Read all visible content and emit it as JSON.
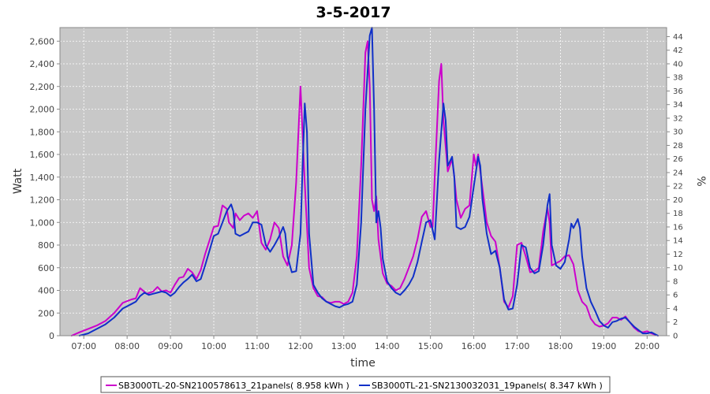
{
  "chart_data": {
    "type": "line",
    "title": "3-5-2017",
    "xlabel": "time",
    "ylabel": "Watt",
    "y2label": "%",
    "xlim": [
      6.45,
      20.45
    ],
    "ylim": [
      0,
      2720
    ],
    "y2lim": [
      0,
      45.33
    ],
    "x_ticks": [
      7,
      8,
      9,
      10,
      11,
      12,
      13,
      14,
      15,
      16,
      17,
      18,
      19,
      20
    ],
    "x_tick_labels": [
      "07:00",
      "08:00",
      "09:00",
      "10:00",
      "11:00",
      "12:00",
      "13:00",
      "14:00",
      "15:00",
      "16:00",
      "17:00",
      "18:00",
      "19:00",
      "20:00"
    ],
    "y_ticks": [
      0,
      200,
      400,
      600,
      800,
      1000,
      1200,
      1400,
      1600,
      1800,
      2000,
      2200,
      2400,
      2600
    ],
    "y_tick_labels": [
      "0",
      "200",
      "400",
      "600",
      "800",
      "1,000",
      "1,200",
      "1,400",
      "1,600",
      "1,800",
      "2,000",
      "2,200",
      "2,400",
      "2,600"
    ],
    "y2_ticks": [
      0,
      2,
      4,
      6,
      8,
      10,
      12,
      14,
      16,
      18,
      20,
      22,
      24,
      26,
      28,
      30,
      32,
      34,
      36,
      38,
      40,
      42,
      44
    ],
    "grid": true,
    "legend_position": "bottom",
    "series": [
      {
        "name": "SB3000TL-20-SN2100578613_21panels( 8.958 kWh )",
        "color": "#cc00cc",
        "points": [
          [
            6.72,
            0
          ],
          [
            6.9,
            30
          ],
          [
            7.1,
            60
          ],
          [
            7.3,
            90
          ],
          [
            7.5,
            130
          ],
          [
            7.7,
            200
          ],
          [
            7.9,
            290
          ],
          [
            8.1,
            320
          ],
          [
            8.2,
            330
          ],
          [
            8.3,
            420
          ],
          [
            8.45,
            370
          ],
          [
            8.6,
            390
          ],
          [
            8.7,
            430
          ],
          [
            8.8,
            390
          ],
          [
            8.9,
            400
          ],
          [
            9.0,
            380
          ],
          [
            9.1,
            450
          ],
          [
            9.2,
            510
          ],
          [
            9.3,
            520
          ],
          [
            9.4,
            590
          ],
          [
            9.5,
            560
          ],
          [
            9.6,
            500
          ],
          [
            9.7,
            580
          ],
          [
            9.8,
            720
          ],
          [
            9.9,
            840
          ],
          [
            10.0,
            960
          ],
          [
            10.1,
            970
          ],
          [
            10.2,
            1150
          ],
          [
            10.3,
            1120
          ],
          [
            10.35,
            1000
          ],
          [
            10.45,
            950
          ],
          [
            10.5,
            1080
          ],
          [
            10.6,
            1020
          ],
          [
            10.7,
            1060
          ],
          [
            10.8,
            1080
          ],
          [
            10.9,
            1040
          ],
          [
            11.0,
            1100
          ],
          [
            11.05,
            960
          ],
          [
            11.1,
            820
          ],
          [
            11.2,
            760
          ],
          [
            11.3,
            850
          ],
          [
            11.4,
            1000
          ],
          [
            11.5,
            950
          ],
          [
            11.6,
            700
          ],
          [
            11.7,
            620
          ],
          [
            11.8,
            800
          ],
          [
            11.9,
            1350
          ],
          [
            12.0,
            2200
          ],
          [
            12.1,
            1350
          ],
          [
            12.2,
            600
          ],
          [
            12.3,
            420
          ],
          [
            12.4,
            350
          ],
          [
            12.5,
            340
          ],
          [
            12.6,
            300
          ],
          [
            12.7,
            290
          ],
          [
            12.8,
            300
          ],
          [
            12.9,
            300
          ],
          [
            13.0,
            280
          ],
          [
            13.1,
            300
          ],
          [
            13.2,
            380
          ],
          [
            13.3,
            700
          ],
          [
            13.4,
            1500
          ],
          [
            13.5,
            2500
          ],
          [
            13.55,
            2600
          ],
          [
            13.6,
            2200
          ],
          [
            13.65,
            1200
          ],
          [
            13.7,
            1100
          ],
          [
            13.75,
            1230
          ],
          [
            13.8,
            850
          ],
          [
            13.9,
            550
          ],
          [
            14.0,
            460
          ],
          [
            14.1,
            440
          ],
          [
            14.2,
            400
          ],
          [
            14.3,
            420
          ],
          [
            14.4,
            500
          ],
          [
            14.5,
            600
          ],
          [
            14.6,
            700
          ],
          [
            14.7,
            850
          ],
          [
            14.8,
            1050
          ],
          [
            14.9,
            1100
          ],
          [
            15.0,
            960
          ],
          [
            15.05,
            960
          ],
          [
            15.1,
            1400
          ],
          [
            15.2,
            2250
          ],
          [
            15.25,
            2400
          ],
          [
            15.3,
            1900
          ],
          [
            15.4,
            1450
          ],
          [
            15.5,
            1560
          ],
          [
            15.55,
            1400
          ],
          [
            15.6,
            1200
          ],
          [
            15.7,
            1040
          ],
          [
            15.8,
            1120
          ],
          [
            15.9,
            1150
          ],
          [
            16.0,
            1600
          ],
          [
            16.05,
            1500
          ],
          [
            16.1,
            1600
          ],
          [
            16.2,
            1300
          ],
          [
            16.3,
            1000
          ],
          [
            16.4,
            880
          ],
          [
            16.5,
            830
          ],
          [
            16.6,
            600
          ],
          [
            16.7,
            300
          ],
          [
            16.8,
            250
          ],
          [
            16.9,
            350
          ],
          [
            17.0,
            800
          ],
          [
            17.1,
            820
          ],
          [
            17.2,
            700
          ],
          [
            17.3,
            560
          ],
          [
            17.4,
            570
          ],
          [
            17.5,
            600
          ],
          [
            17.6,
            920
          ],
          [
            17.7,
            1130
          ],
          [
            17.75,
            1000
          ],
          [
            17.8,
            620
          ],
          [
            17.9,
            640
          ],
          [
            18.0,
            660
          ],
          [
            18.1,
            700
          ],
          [
            18.2,
            710
          ],
          [
            18.3,
            630
          ],
          [
            18.4,
            400
          ],
          [
            18.5,
            300
          ],
          [
            18.6,
            260
          ],
          [
            18.7,
            150
          ],
          [
            18.8,
            100
          ],
          [
            18.9,
            80
          ],
          [
            19.0,
            90
          ],
          [
            19.1,
            110
          ],
          [
            19.2,
            160
          ],
          [
            19.3,
            160
          ],
          [
            19.4,
            140
          ],
          [
            19.5,
            170
          ],
          [
            19.6,
            120
          ],
          [
            19.7,
            70
          ],
          [
            19.8,
            40
          ],
          [
            19.9,
            30
          ],
          [
            20.0,
            40
          ],
          [
            20.1,
            20
          ],
          [
            20.25,
            0
          ]
        ]
      },
      {
        "name": "SB3000TL-21-SN2130032031_19panels( 8.347 kWh )",
        "color": "#1030c8",
        "points": [
          [
            6.9,
            0
          ],
          [
            7.1,
            20
          ],
          [
            7.3,
            60
          ],
          [
            7.5,
            100
          ],
          [
            7.7,
            160
          ],
          [
            7.9,
            240
          ],
          [
            8.1,
            280
          ],
          [
            8.2,
            300
          ],
          [
            8.3,
            350
          ],
          [
            8.4,
            380
          ],
          [
            8.5,
            360
          ],
          [
            8.6,
            370
          ],
          [
            8.7,
            380
          ],
          [
            8.8,
            390
          ],
          [
            8.9,
            380
          ],
          [
            9.0,
            350
          ],
          [
            9.1,
            380
          ],
          [
            9.2,
            430
          ],
          [
            9.3,
            470
          ],
          [
            9.4,
            500
          ],
          [
            9.5,
            540
          ],
          [
            9.6,
            480
          ],
          [
            9.7,
            500
          ],
          [
            9.8,
            620
          ],
          [
            9.9,
            750
          ],
          [
            10.0,
            880
          ],
          [
            10.1,
            900
          ],
          [
            10.2,
            1000
          ],
          [
            10.3,
            1100
          ],
          [
            10.4,
            1160
          ],
          [
            10.45,
            1100
          ],
          [
            10.5,
            900
          ],
          [
            10.6,
            880
          ],
          [
            10.7,
            900
          ],
          [
            10.8,
            920
          ],
          [
            10.9,
            1000
          ],
          [
            11.0,
            1000
          ],
          [
            11.1,
            980
          ],
          [
            11.2,
            800
          ],
          [
            11.3,
            740
          ],
          [
            11.4,
            800
          ],
          [
            11.5,
            870
          ],
          [
            11.6,
            960
          ],
          [
            11.65,
            900
          ],
          [
            11.7,
            700
          ],
          [
            11.8,
            560
          ],
          [
            11.9,
            570
          ],
          [
            12.0,
            900
          ],
          [
            12.05,
            1500
          ],
          [
            12.1,
            2050
          ],
          [
            12.15,
            1800
          ],
          [
            12.2,
            900
          ],
          [
            12.3,
            450
          ],
          [
            12.4,
            380
          ],
          [
            12.5,
            330
          ],
          [
            12.6,
            300
          ],
          [
            12.7,
            280
          ],
          [
            12.8,
            260
          ],
          [
            12.9,
            250
          ],
          [
            13.0,
            270
          ],
          [
            13.1,
            280
          ],
          [
            13.2,
            300
          ],
          [
            13.3,
            450
          ],
          [
            13.4,
            1000
          ],
          [
            13.5,
            2000
          ],
          [
            13.6,
            2650
          ],
          [
            13.65,
            2720
          ],
          [
            13.7,
            2000
          ],
          [
            13.75,
            1000
          ],
          [
            13.8,
            1100
          ],
          [
            13.85,
            950
          ],
          [
            13.9,
            680
          ],
          [
            14.0,
            480
          ],
          [
            14.1,
            420
          ],
          [
            14.2,
            380
          ],
          [
            14.3,
            360
          ],
          [
            14.4,
            400
          ],
          [
            14.5,
            450
          ],
          [
            14.6,
            520
          ],
          [
            14.7,
            650
          ],
          [
            14.8,
            830
          ],
          [
            14.9,
            1000
          ],
          [
            15.0,
            1020
          ],
          [
            15.1,
            850
          ],
          [
            15.2,
            1550
          ],
          [
            15.3,
            2050
          ],
          [
            15.35,
            1900
          ],
          [
            15.4,
            1500
          ],
          [
            15.5,
            1580
          ],
          [
            15.55,
            1400
          ],
          [
            15.6,
            960
          ],
          [
            15.7,
            940
          ],
          [
            15.8,
            960
          ],
          [
            15.9,
            1050
          ],
          [
            16.0,
            1320
          ],
          [
            16.1,
            1580
          ],
          [
            16.15,
            1500
          ],
          [
            16.2,
            1200
          ],
          [
            16.3,
            900
          ],
          [
            16.4,
            720
          ],
          [
            16.5,
            750
          ],
          [
            16.6,
            600
          ],
          [
            16.7,
            320
          ],
          [
            16.8,
            230
          ],
          [
            16.9,
            240
          ],
          [
            17.0,
            450
          ],
          [
            17.1,
            800
          ],
          [
            17.2,
            780
          ],
          [
            17.3,
            600
          ],
          [
            17.4,
            550
          ],
          [
            17.5,
            570
          ],
          [
            17.6,
            800
          ],
          [
            17.7,
            1150
          ],
          [
            17.75,
            1250
          ],
          [
            17.8,
            800
          ],
          [
            17.9,
            620
          ],
          [
            18.0,
            590
          ],
          [
            18.1,
            650
          ],
          [
            18.2,
            850
          ],
          [
            18.25,
            990
          ],
          [
            18.3,
            950
          ],
          [
            18.4,
            1030
          ],
          [
            18.45,
            950
          ],
          [
            18.5,
            700
          ],
          [
            18.6,
            420
          ],
          [
            18.7,
            300
          ],
          [
            18.8,
            220
          ],
          [
            18.9,
            130
          ],
          [
            19.0,
            90
          ],
          [
            19.1,
            70
          ],
          [
            19.2,
            120
          ],
          [
            19.3,
            130
          ],
          [
            19.4,
            150
          ],
          [
            19.5,
            160
          ],
          [
            19.6,
            120
          ],
          [
            19.7,
            80
          ],
          [
            19.8,
            50
          ],
          [
            19.9,
            20
          ],
          [
            20.0,
            20
          ],
          [
            20.1,
            30
          ],
          [
            20.2,
            10
          ],
          [
            20.25,
            0
          ]
        ]
      }
    ]
  }
}
